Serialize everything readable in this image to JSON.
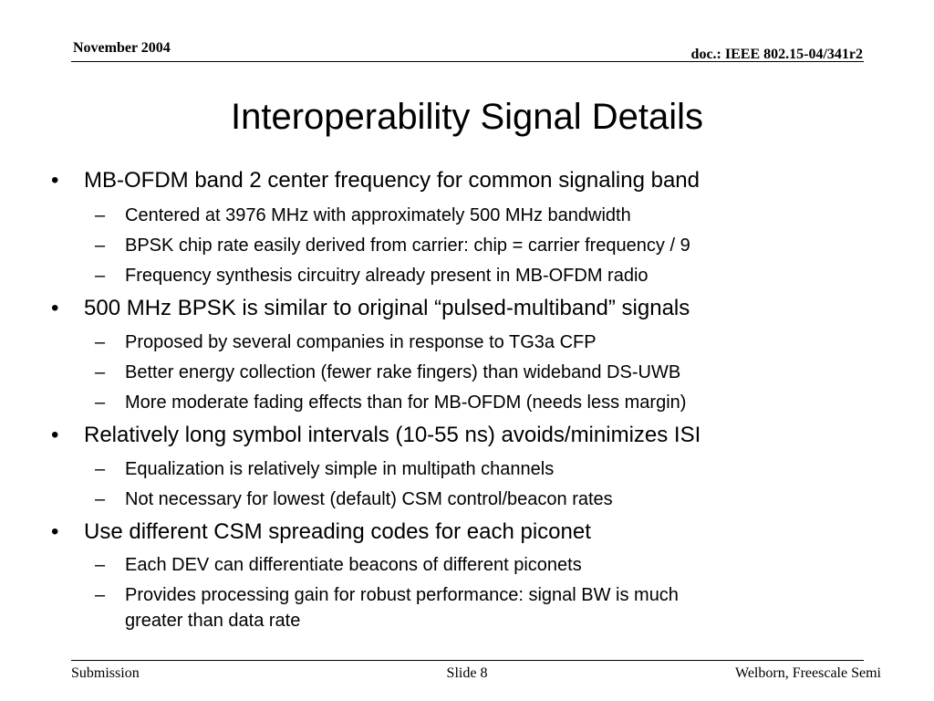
{
  "header": {
    "date": "November 2004",
    "doc_id": "doc.: IEEE 802.15-04/341r2"
  },
  "title": "Interoperability Signal Details",
  "markers": {
    "level1": "•",
    "level2": "–"
  },
  "bullets": [
    {
      "text": "MB-OFDM band 2 center frequency for common signaling band",
      "sub": [
        "Centered at 3976 MHz with approximately 500 MHz bandwidth",
        "BPSK chip rate easily derived from carrier: chip = carrier frequency / 9",
        "Frequency synthesis circuitry already present in MB-OFDM radio"
      ]
    },
    {
      "text": "500 MHz BPSK is similar to original “pulsed-multiband” signals",
      "sub": [
        "Proposed by several companies in response to TG3a CFP",
        "Better energy collection (fewer rake fingers) than wideband DS-UWB",
        "More moderate fading effects than for MB-OFDM (needs less margin)"
      ]
    },
    {
      "text": "Relatively long symbol intervals (10-55 ns) avoids/minimizes ISI",
      "sub": [
        "Equalization is relatively simple in multipath channels",
        "Not necessary for lowest (default) CSM control/beacon rates"
      ]
    },
    {
      "text": "Use different CSM spreading codes for each piconet",
      "sub": [
        "Each DEV can differentiate beacons of different piconets",
        "Provides processing gain for robust performance: signal BW is much",
        "greater than data rate"
      ]
    }
  ],
  "footer": {
    "left": "Submission",
    "center": "Slide 8",
    "right": "Welborn, Freescale Semi"
  }
}
